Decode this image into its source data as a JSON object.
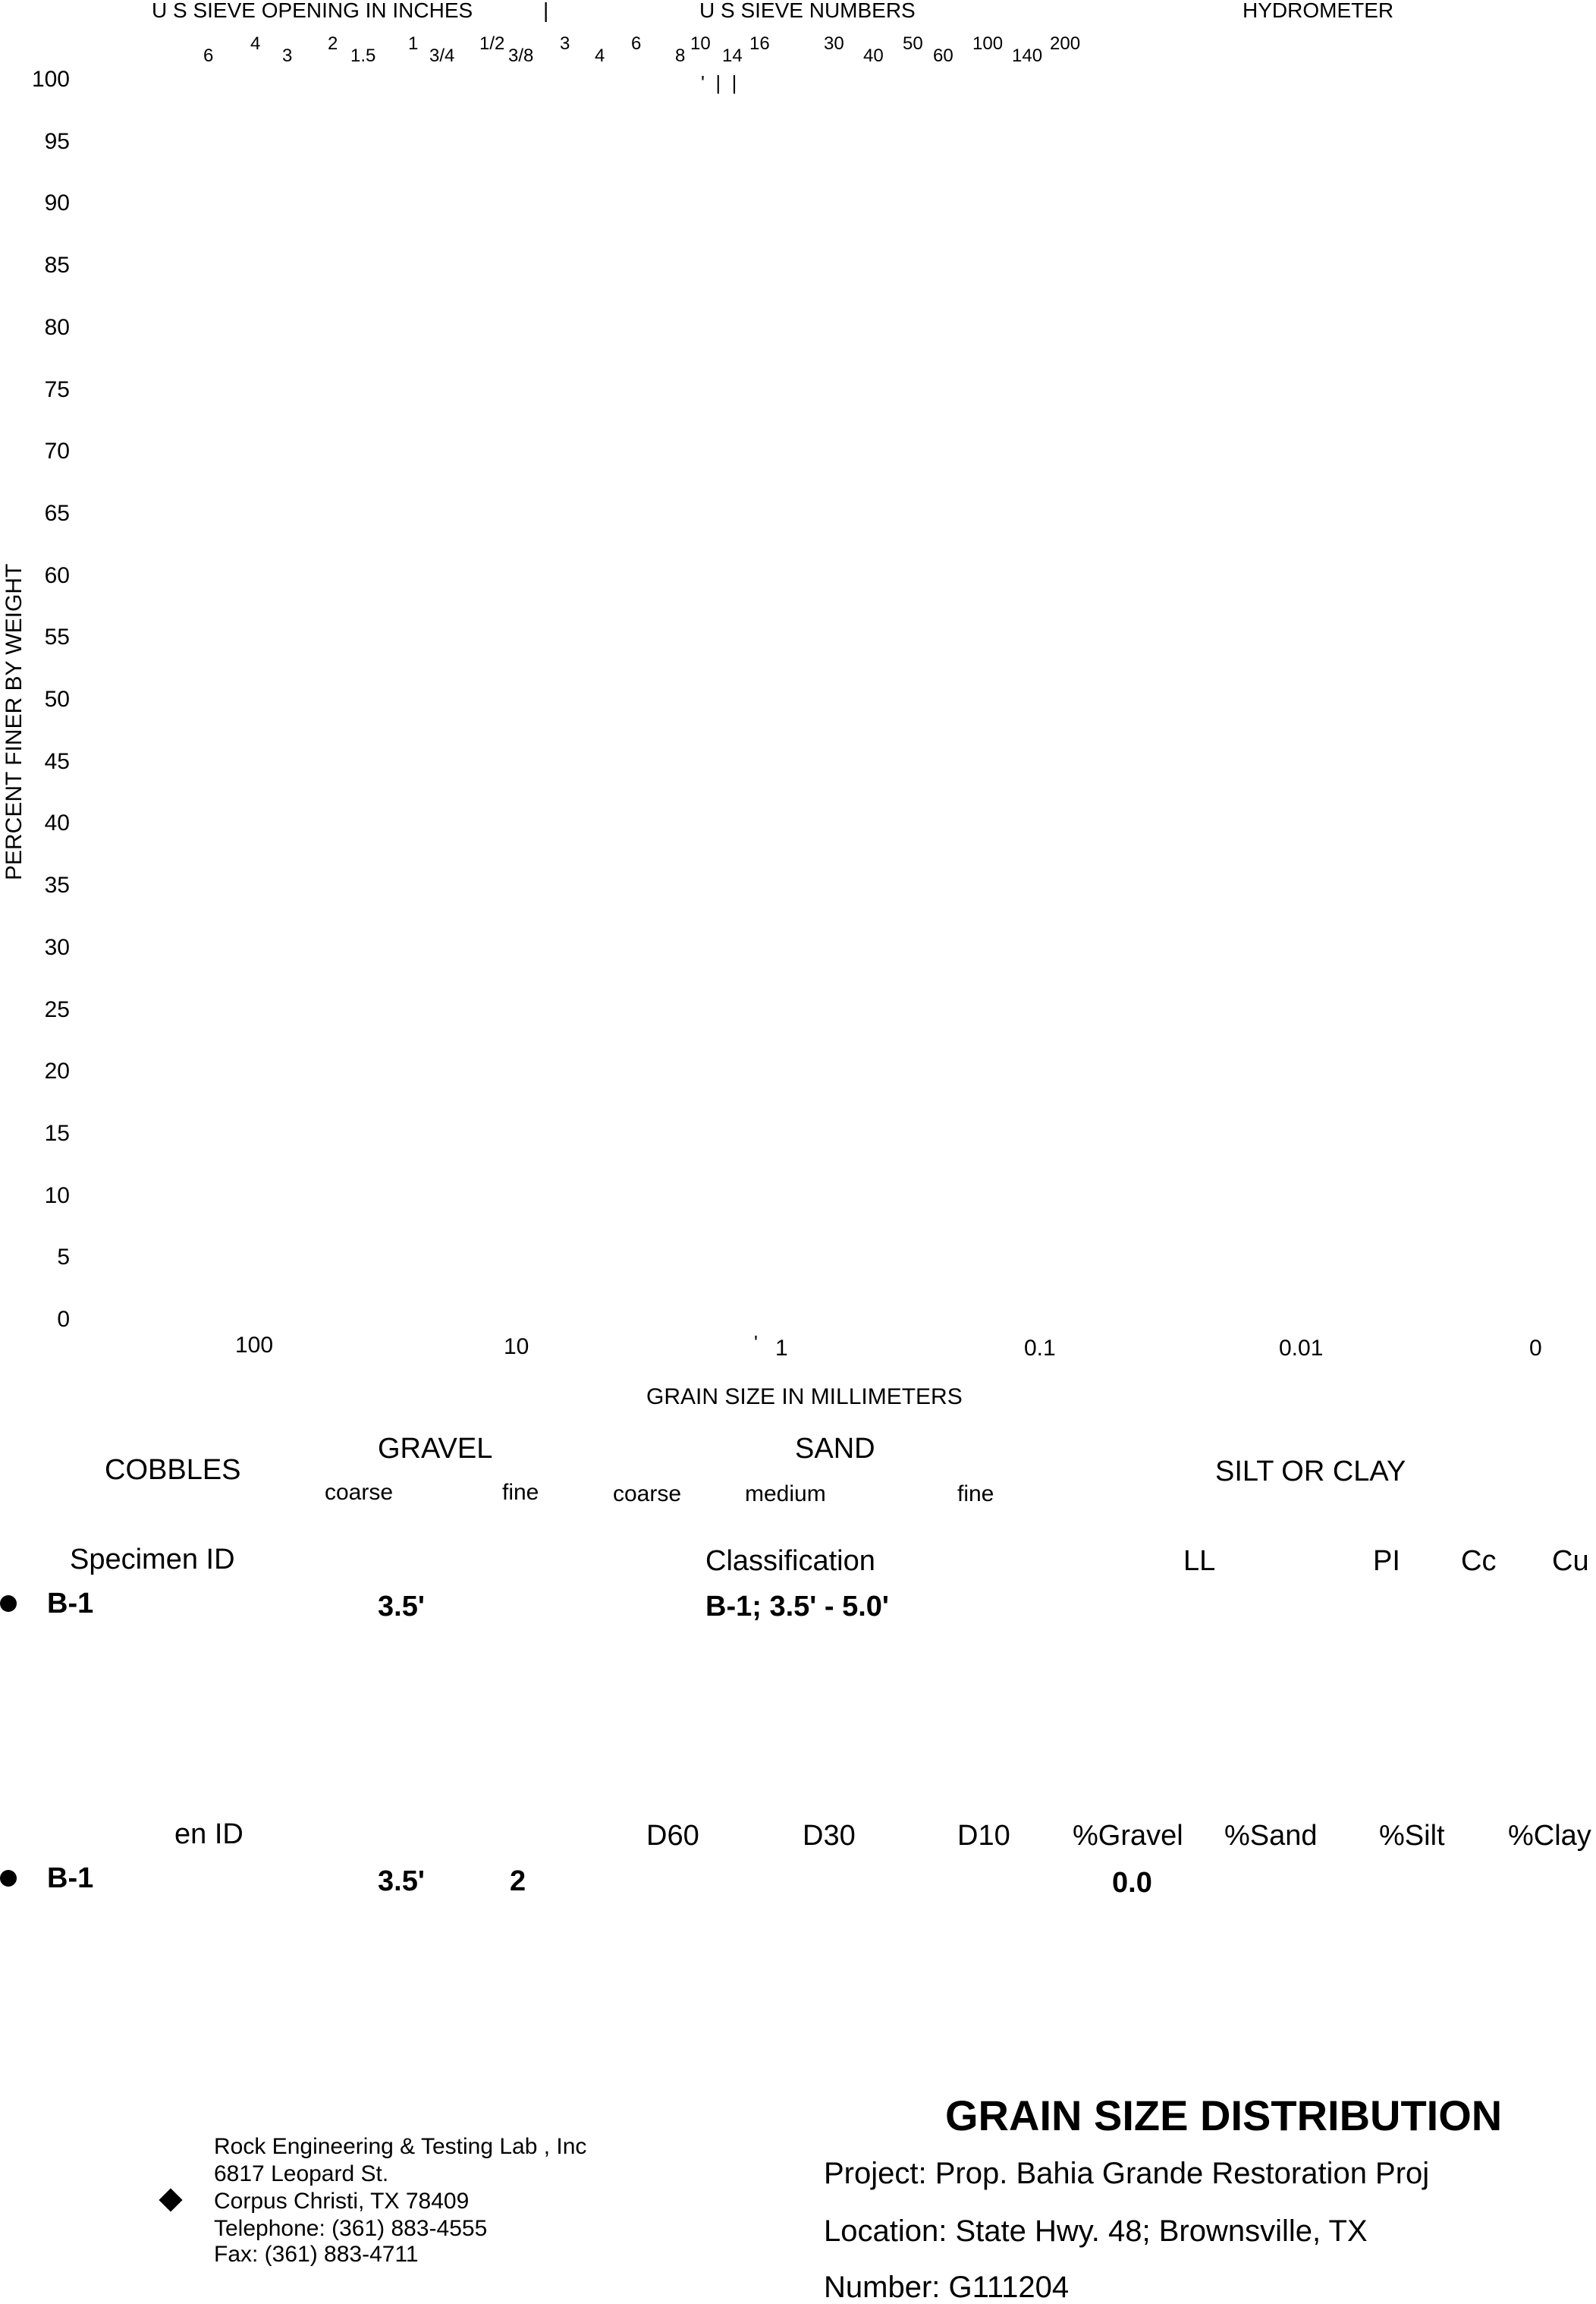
{
  "chart_data": {
    "type": "line",
    "title": "",
    "xlabel": "GRAIN SIZE IN MILLIMETERS",
    "ylabel": "PERCENT FINER BY WEIGHT",
    "x_scale": "log",
    "y_ticks": [
      "100",
      "95",
      "90",
      "85",
      "80",
      "75",
      "70",
      "65",
      "60",
      "55",
      "50",
      "45",
      "40",
      "35",
      "30",
      "25",
      "20",
      "15",
      "10",
      "5",
      "0"
    ],
    "x_ticks": [
      "100",
      "10",
      "1",
      "0.1",
      "0.01",
      "0"
    ],
    "top_headers": {
      "sieve_opening": "U S  SIEVE OPENING IN INCHES",
      "sieve_numbers": "U S  SIEVE NUMBERS",
      "hydrometer": "HYDROMETER",
      "opening_labels": [
        "6",
        "4",
        "3",
        "2",
        "1.5",
        "1",
        "3/4",
        "1/2",
        "3/8",
        "3"
      ],
      "number_labels": [
        "4",
        "6",
        "8",
        "10",
        "14",
        "16",
        "30",
        "40",
        "50",
        "60",
        "100",
        "140",
        "200"
      ]
    },
    "series": []
  },
  "classification_band": {
    "cobbles": "COBBLES",
    "gravel": "GRAVEL",
    "gravel_coarse": "coarse",
    "gravel_fine": "fine",
    "sand": "SAND",
    "sand_coarse": "coarse",
    "sand_medium": "medium",
    "sand_fine": "fine",
    "silt_clay": "SILT OR CLAY"
  },
  "table1": {
    "headers": [
      "Specimen ID",
      "Classification",
      "LL",
      "PI",
      "Cc",
      "Cu"
    ],
    "row": {
      "id": "B-1",
      "depth": "3.5'",
      "classification": "B-1; 3.5' - 5.0'"
    }
  },
  "table2": {
    "headers": [
      "en ID",
      "D60",
      "D30",
      "D10",
      "%Gravel",
      "%Sand",
      "%Silt",
      "%Clay"
    ],
    "row": {
      "id": "B-1",
      "depth": "3.5'",
      "dmax": "2",
      "gravel": "0.0"
    }
  },
  "lab": {
    "name": "Rock Engineering & Testing Lab , Inc",
    "street": "6817 Leopard St.",
    "city": "Corpus Christi, TX 78409",
    "phone": "Telephone:  (361) 883-4555",
    "fax": "Fax:  (361) 883-4711"
  },
  "report": {
    "title": "GRAIN SIZE DISTRIBUTION",
    "project": "Project:  Prop. Bahia Grande Restoration Proj",
    "location": "Location:  State Hwy. 48; Brownsville, TX",
    "number": "Number:  G111204"
  }
}
